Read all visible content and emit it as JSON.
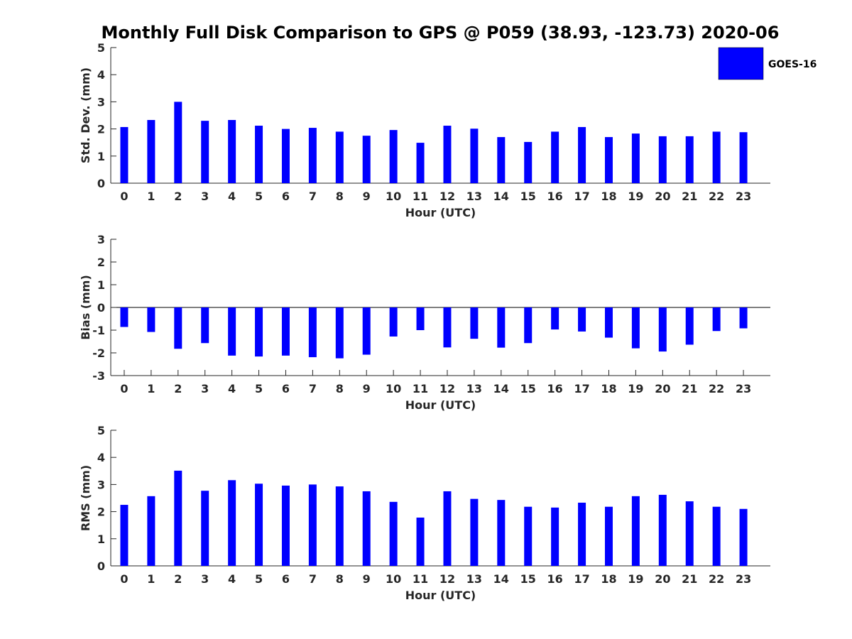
{
  "title": "Monthly Full Disk Comparison to GPS @ P059 (38.93, -123.73) 2020-06",
  "legend": {
    "label": "GOES-16",
    "color": "#0000ff",
    "position": "top-right"
  },
  "chart_data": [
    {
      "type": "bar",
      "categories": [
        "0",
        "1",
        "2",
        "3",
        "4",
        "5",
        "6",
        "7",
        "8",
        "9",
        "10",
        "11",
        "12",
        "13",
        "14",
        "15",
        "16",
        "17",
        "18",
        "19",
        "20",
        "21",
        "22",
        "23"
      ],
      "series": [
        {
          "name": "GOES-16",
          "values": [
            2.07,
            2.33,
            3.0,
            2.3,
            2.33,
            2.12,
            2.0,
            2.04,
            1.9,
            1.75,
            1.96,
            1.49,
            2.12,
            2.01,
            1.7,
            1.52,
            1.9,
            2.07,
            1.7,
            1.83,
            1.73,
            1.73,
            1.9,
            1.88
          ]
        }
      ],
      "xlabel": "Hour (UTC)",
      "ylabel": "Std. Dev. (mm)",
      "ylim": [
        0,
        5
      ],
      "yticks": [
        0,
        1,
        2,
        3,
        4,
        5
      ],
      "grid": false
    },
    {
      "type": "bar",
      "categories": [
        "0",
        "1",
        "2",
        "3",
        "4",
        "5",
        "6",
        "7",
        "8",
        "9",
        "10",
        "11",
        "12",
        "13",
        "14",
        "15",
        "16",
        "17",
        "18",
        "19",
        "20",
        "21",
        "22",
        "23"
      ],
      "series": [
        {
          "name": "GOES-16",
          "values": [
            -0.86,
            -1.08,
            -1.82,
            -1.57,
            -2.12,
            -2.16,
            -2.12,
            -2.19,
            -2.24,
            -2.08,
            -1.28,
            -1.0,
            -1.76,
            -1.38,
            -1.77,
            -1.57,
            -0.97,
            -1.06,
            -1.33,
            -1.8,
            -1.94,
            -1.64,
            -1.04,
            -0.92
          ]
        }
      ],
      "xlabel": "Hour (UTC)",
      "ylabel": "Bias (mm)",
      "ylim": [
        -3,
        3
      ],
      "yticks": [
        -3,
        -2,
        -1,
        0,
        1,
        2,
        3
      ],
      "grid": false
    },
    {
      "type": "bar",
      "categories": [
        "0",
        "1",
        "2",
        "3",
        "4",
        "5",
        "6",
        "7",
        "8",
        "9",
        "10",
        "11",
        "12",
        "13",
        "14",
        "15",
        "16",
        "17",
        "18",
        "19",
        "20",
        "21",
        "22",
        "23"
      ],
      "series": [
        {
          "name": "GOES-16",
          "values": [
            2.25,
            2.57,
            3.51,
            2.77,
            3.16,
            3.03,
            2.96,
            3.0,
            2.93,
            2.75,
            2.36,
            1.78,
            2.75,
            2.47,
            2.43,
            2.18,
            2.15,
            2.33,
            2.18,
            2.57,
            2.62,
            2.38,
            2.18,
            2.1
          ]
        }
      ],
      "xlabel": "Hour (UTC)",
      "ylabel": "RMS (mm)",
      "ylim": [
        0,
        5
      ],
      "yticks": [
        0,
        1,
        2,
        3,
        4,
        5
      ],
      "grid": false
    }
  ]
}
